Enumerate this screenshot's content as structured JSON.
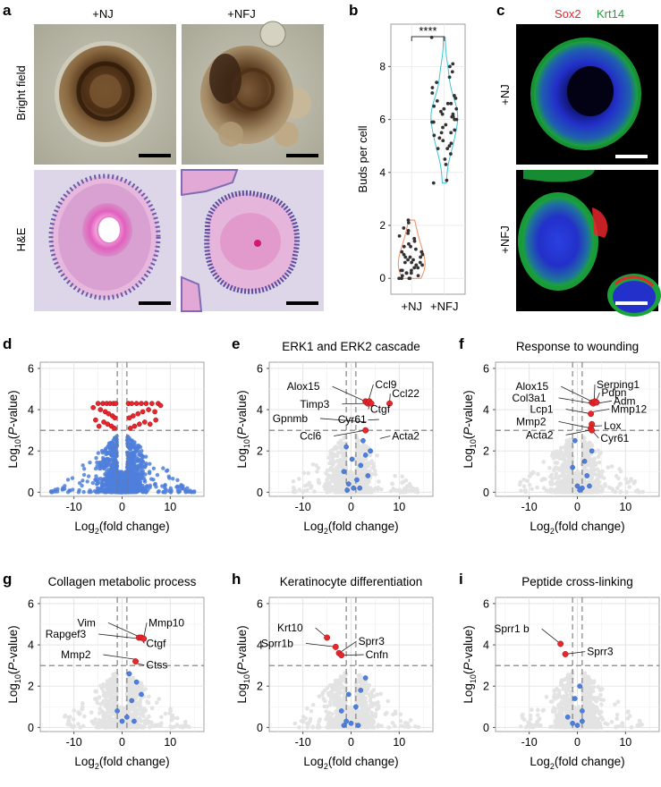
{
  "panels": {
    "a": {
      "letter": "a",
      "col_labels": [
        "+NJ",
        "+NFJ"
      ],
      "row_labels": [
        "Bright field",
        "H&E"
      ],
      "images": [
        "organoid-brightfield-NJ",
        "organoid-brightfield-NFJ",
        "organoid-HE-NJ",
        "organoid-HE-NFJ"
      ],
      "colors": {
        "brightfield_bg": "#b9b7a6",
        "he_bg": "#dcd6e8",
        "he_tissue": "#d78fc8",
        "he_nuclei": "#5a4d9e"
      }
    },
    "b": {
      "letter": "b",
      "significance": "****"
    },
    "c": {
      "letter": "c",
      "marker_red": "Sox2",
      "marker_green": "Krt14",
      "row_labels": [
        "+NJ",
        "+NFJ"
      ],
      "colors": {
        "red": "#e8262d",
        "green": "#1aa33a",
        "blue": "#2330c9"
      }
    },
    "d": {
      "letter": "d"
    },
    "e": {
      "letter": "e"
    },
    "f": {
      "letter": "f"
    },
    "g": {
      "letter": "g"
    },
    "h": {
      "letter": "h"
    },
    "i": {
      "letter": "i"
    }
  },
  "volcano_common": {
    "ylabel_main": "Log",
    "ylabel_sub": "10",
    "ylabel_rest": "(P-value)",
    "xlabel_main": "Log",
    "xlabel_sub": "2",
    "xlabel_rest": "(fold change)"
  },
  "chart_data": [
    {
      "id": "b",
      "type": "scatter",
      "title": "",
      "ylabel": "Buds per cell",
      "categories": [
        "+NJ",
        "+NFJ"
      ],
      "ylim": [
        -0.6,
        9.6
      ],
      "yticks": [
        0,
        2,
        4,
        6,
        8
      ],
      "colors": {
        "NJ_violin": "#f08a5d",
        "NFJ_violin": "#3cc3d6",
        "points": "#333333"
      },
      "series": [
        {
          "name": "+NJ",
          "values": [
            0.0,
            0.1,
            0.2,
            0.3,
            0.5,
            0.6,
            0.7,
            0.8,
            1.0,
            1.1,
            1.2,
            1.3,
            1.5,
            1.7,
            1.9,
            2.1,
            0.0,
            0.4,
            0.9,
            0.2,
            0.6,
            1.4,
            0.1,
            0.8,
            0.3,
            1.0,
            0.5,
            0.0,
            0.7,
            1.6,
            0.2,
            0.9,
            1.2,
            0.4,
            0.0,
            0.6,
            2.2,
            1.8,
            0.3,
            0.8
          ]
        },
        {
          "name": "+NFJ",
          "values": [
            9.1,
            8.1,
            8.0,
            7.6,
            7.4,
            7.2,
            7.0,
            6.9,
            6.8,
            6.6,
            6.5,
            6.4,
            6.3,
            6.2,
            6.2,
            6.1,
            6.0,
            6.0,
            5.9,
            5.8,
            5.7,
            5.6,
            5.5,
            5.4,
            5.3,
            5.2,
            5.1,
            5.0,
            4.9,
            4.7,
            4.5,
            4.3,
            3.7,
            3.6,
            6.7,
            5.9,
            6.4,
            7.8,
            6.1,
            5.5,
            4.9,
            6.6
          ]
        }
      ]
    },
    {
      "id": "d",
      "type": "scatter",
      "title": "",
      "xlim": [
        -17,
        17
      ],
      "ylim": [
        -0.2,
        6.3
      ],
      "xticks": [
        -10,
        0,
        10
      ],
      "yticks": [
        0,
        2,
        4,
        6
      ],
      "threshold_y": 3.0,
      "threshold_x": [
        -1,
        1
      ],
      "background_cloud": "blue",
      "cloud_xrange": [
        -15,
        15
      ],
      "sig_points": [
        [
          -5.0,
          4.3
        ],
        [
          -4.0,
          4.3
        ],
        [
          -3.2,
          4.3
        ],
        [
          -2.5,
          4.3
        ],
        [
          -1.8,
          4.3
        ],
        [
          -1.3,
          4.3
        ],
        [
          1.3,
          4.3
        ],
        [
          2.0,
          4.3
        ],
        [
          3.0,
          4.3
        ],
        [
          4.0,
          4.3
        ],
        [
          5.0,
          4.3
        ],
        [
          6.2,
          4.3
        ],
        [
          7.5,
          4.3
        ],
        [
          -4.5,
          4.0
        ],
        [
          -3.5,
          3.9
        ],
        [
          -2.8,
          3.8
        ],
        [
          -2.0,
          3.7
        ],
        [
          -1.5,
          3.6
        ],
        [
          1.5,
          3.6
        ],
        [
          2.3,
          3.7
        ],
        [
          3.3,
          3.8
        ],
        [
          4.3,
          3.9
        ],
        [
          5.5,
          4.0
        ],
        [
          6.8,
          3.9
        ],
        [
          -3.8,
          3.4
        ],
        [
          -3.0,
          3.3
        ],
        [
          -2.2,
          3.2
        ],
        [
          -1.6,
          3.1
        ],
        [
          1.7,
          3.1
        ],
        [
          2.6,
          3.2
        ],
        [
          3.6,
          3.3
        ],
        [
          4.7,
          3.4
        ],
        [
          5.8,
          3.3
        ],
        [
          7.0,
          3.5
        ],
        [
          -5.5,
          3.5
        ],
        [
          -4.8,
          3.2
        ],
        [
          8.0,
          4.2
        ],
        [
          -6.0,
          4.1
        ]
      ],
      "labels": []
    },
    {
      "id": "e",
      "type": "scatter",
      "title": "ERK1 and ERK2 cascade",
      "xlim": [
        -17,
        17
      ],
      "ylim": [
        -0.2,
        6.3
      ],
      "xticks": [
        -10,
        0,
        10
      ],
      "yticks": [
        0,
        2,
        4,
        6
      ],
      "threshold_y": 3.0,
      "threshold_x": [
        -1,
        1
      ],
      "background_cloud": "gray",
      "cloud_xrange": [
        -12,
        14
      ],
      "blue_points": [
        [
          -1.5,
          1.0
        ],
        [
          -0.5,
          0.4
        ],
        [
          0.5,
          0.2
        ],
        [
          1.2,
          0.6
        ],
        [
          2.0,
          1.3
        ],
        [
          3.0,
          1.8
        ],
        [
          3.5,
          0.8
        ],
        [
          -1.0,
          2.2
        ],
        [
          2.5,
          2.5
        ],
        [
          0.2,
          1.6
        ],
        [
          1.8,
          0.2
        ],
        [
          -0.8,
          0.1
        ],
        [
          4.0,
          2.0
        ]
      ],
      "sig_points": [
        [
          3.0,
          4.4
        ],
        [
          3.2,
          4.35
        ],
        [
          3.5,
          4.3
        ],
        [
          3.8,
          4.4
        ],
        [
          4.2,
          4.3
        ],
        [
          8.0,
          4.3
        ],
        [
          3.0,
          3.0
        ]
      ],
      "labels": [
        {
          "text": "Alox15",
          "x": -6.5,
          "y": 4.95,
          "to": [
            3.0,
            4.4
          ]
        },
        {
          "text": "Ccl9",
          "x": 5.0,
          "y": 5.05,
          "to": [
            3.5,
            4.35
          ]
        },
        {
          "text": "Ccl22",
          "x": 8.5,
          "y": 4.6,
          "to": [
            8.0,
            4.3
          ]
        },
        {
          "text": "Timp3",
          "x": -4.5,
          "y": 4.1,
          "to": [
            3.0,
            4.3
          ]
        },
        {
          "text": "Ctgf",
          "x": 4.0,
          "y": 3.85,
          "to": [
            3.8,
            4.4
          ]
        },
        {
          "text": "Gpnmb",
          "x": -9.0,
          "y": 3.4,
          "to": [
            3.2,
            3.4
          ]
        },
        {
          "text": "Cyr61",
          "x": 3.2,
          "y": 3.35,
          "to": [
            3.5,
            3.5
          ]
        },
        {
          "text": "Ccl6",
          "x": -6.2,
          "y": 2.55,
          "to": [
            3.0,
            3.0
          ]
        },
        {
          "text": "Acta2",
          "x": 8.5,
          "y": 2.55,
          "to": [
            6.0,
            2.6
          ]
        }
      ]
    },
    {
      "id": "f",
      "type": "scatter",
      "title": "Response to wounding",
      "xlim": [
        -17,
        17
      ],
      "ylim": [
        -0.2,
        6.3
      ],
      "xticks": [
        -10,
        0,
        10
      ],
      "yticks": [
        0,
        2,
        4,
        6
      ],
      "threshold_y": 3.0,
      "threshold_x": [
        -1,
        1
      ],
      "background_cloud": "gray",
      "cloud_xrange": [
        -12,
        14
      ],
      "blue_points": [
        [
          -1.0,
          1.2
        ],
        [
          0.0,
          0.3
        ],
        [
          1.0,
          0.2
        ],
        [
          2.0,
          0.8
        ],
        [
          3.0,
          2.0
        ],
        [
          -0.5,
          2.5
        ],
        [
          1.5,
          1.5
        ],
        [
          0.5,
          0.1
        ],
        [
          2.5,
          0.3
        ]
      ],
      "sig_points": [
        [
          3.0,
          4.35
        ],
        [
          3.3,
          4.3
        ],
        [
          3.6,
          4.4
        ],
        [
          4.0,
          4.35
        ],
        [
          2.8,
          3.8
        ],
        [
          3.0,
          3.3
        ],
        [
          2.8,
          3.1
        ],
        [
          3.0,
          3.0
        ]
      ],
      "labels": [
        {
          "text": "Alox15",
          "x": -6.0,
          "y": 4.95,
          "to": [
            3.0,
            4.4
          ]
        },
        {
          "text": "Serping1",
          "x": 4.0,
          "y": 5.05,
          "to": [
            3.5,
            4.4
          ]
        },
        {
          "text": "Pdpn",
          "x": 5.0,
          "y": 4.65,
          "to": [
            3.8,
            4.35
          ]
        },
        {
          "text": "Col3a1",
          "x": -6.5,
          "y": 4.4,
          "to": [
            3.0,
            4.3
          ]
        },
        {
          "text": "Adm",
          "x": 7.5,
          "y": 4.25,
          "to": [
            4.0,
            4.3
          ]
        },
        {
          "text": "Lcp1",
          "x": -5.0,
          "y": 3.85,
          "to": [
            2.8,
            3.8
          ]
        },
        {
          "text": "Mmp12",
          "x": 7.0,
          "y": 3.85,
          "to": [
            3.3,
            3.9
          ]
        },
        {
          "text": "Mmp2",
          "x": -6.5,
          "y": 3.25,
          "to": [
            2.8,
            3.1
          ]
        },
        {
          "text": "Lox",
          "x": 5.5,
          "y": 3.05,
          "to": [
            3.0,
            3.2
          ]
        },
        {
          "text": "Acta2",
          "x": -5.0,
          "y": 2.6,
          "to": [
            2.5,
            3.0
          ]
        },
        {
          "text": "Cyr61",
          "x": 4.8,
          "y": 2.45,
          "to": [
            3.0,
            3.0
          ]
        }
      ]
    },
    {
      "id": "g",
      "type": "scatter",
      "title": "Collagen metabolic process",
      "xlim": [
        -17,
        17
      ],
      "ylim": [
        -0.2,
        6.3
      ],
      "xticks": [
        -10,
        0,
        10
      ],
      "yticks": [
        0,
        2,
        4,
        6
      ],
      "threshold_y": 3.0,
      "threshold_x": [
        -1,
        1
      ],
      "background_cloud": "gray",
      "cloud_xrange": [
        -12,
        14
      ],
      "blue_points": [
        [
          -1.0,
          0.8
        ],
        [
          0.0,
          0.3
        ],
        [
          1.0,
          0.5
        ],
        [
          2.0,
          1.3
        ],
        [
          3.0,
          2.2
        ],
        [
          4.0,
          1.6
        ],
        [
          2.5,
          0.3
        ],
        [
          1.5,
          2.6
        ]
      ],
      "sig_points": [
        [
          3.5,
          4.35
        ],
        [
          4.0,
          4.35
        ],
        [
          4.5,
          4.3
        ],
        [
          2.8,
          3.2
        ]
      ],
      "labels": [
        {
          "text": "Vim",
          "x": -5.5,
          "y": 4.9,
          "to": [
            3.5,
            4.4
          ]
        },
        {
          "text": "Mmp10",
          "x": 5.5,
          "y": 4.9,
          "to": [
            4.5,
            4.35
          ]
        },
        {
          "text": "Rapgef3",
          "x": -7.5,
          "y": 4.35,
          "to": [
            3.5,
            4.3
          ]
        },
        {
          "text": "Ctgf",
          "x": 5.0,
          "y": 3.9,
          "to": [
            4.0,
            4.3
          ]
        },
        {
          "text": "Mmp2",
          "x": -6.5,
          "y": 3.35,
          "to": [
            2.8,
            3.3
          ]
        },
        {
          "text": "Ctss",
          "x": 5.0,
          "y": 2.85,
          "to": [
            3.0,
            3.1
          ]
        }
      ]
    },
    {
      "id": "h",
      "type": "scatter",
      "title": "Keratinocyte differentiation",
      "xlim": [
        -17,
        17
      ],
      "ylim": [
        -0.2,
        6.3
      ],
      "xticks": [
        -10,
        0,
        10
      ],
      "yticks": [
        0,
        2,
        4,
        6
      ],
      "threshold_y": 3.0,
      "threshold_x": [
        -1,
        1
      ],
      "background_cloud": "gray",
      "cloud_xrange": [
        -12,
        14
      ],
      "blue_points": [
        [
          -2.0,
          0.8
        ],
        [
          -1.0,
          0.3
        ],
        [
          0.0,
          0.2
        ],
        [
          1.0,
          1.0
        ],
        [
          2.0,
          1.8
        ],
        [
          3.0,
          2.4
        ],
        [
          -0.5,
          1.6
        ],
        [
          1.5,
          0.1
        ],
        [
          -1.5,
          0.1
        ]
      ],
      "sig_points": [
        [
          -5.0,
          4.35
        ],
        [
          -3.2,
          3.9
        ],
        [
          -2.5,
          3.6
        ],
        [
          -2.0,
          3.5
        ]
      ],
      "labels": [
        {
          "text": "Krt10",
          "x": -10.0,
          "y": 4.65,
          "to": [
            -5.0,
            4.35
          ]
        },
        {
          "text": "Sprr1b",
          "x": -12.0,
          "y": 3.9,
          "to": [
            -3.2,
            3.9
          ]
        },
        {
          "text": "Sprr3",
          "x": 1.5,
          "y": 4.0,
          "to": [
            -2.5,
            3.6
          ]
        },
        {
          "text": "Cnfn",
          "x": 3.0,
          "y": 3.35,
          "to": [
            -2.0,
            3.5
          ]
        }
      ]
    },
    {
      "id": "i",
      "type": "scatter",
      "title": "Peptide cross-linking",
      "xlim": [
        -17,
        17
      ],
      "ylim": [
        -0.2,
        6.3
      ],
      "xticks": [
        -10,
        0,
        10
      ],
      "yticks": [
        0,
        2,
        4,
        6
      ],
      "threshold_y": 3.0,
      "threshold_x": [
        -1,
        1
      ],
      "background_cloud": "gray",
      "cloud_xrange": [
        -12,
        14
      ],
      "blue_points": [
        [
          -2.0,
          0.5
        ],
        [
          -1.0,
          0.2
        ],
        [
          0.0,
          0.1
        ],
        [
          1.0,
          0.8
        ],
        [
          0.5,
          2.0
        ],
        [
          -0.5,
          1.4
        ],
        [
          1.0,
          0.3
        ]
      ],
      "sig_points": [
        [
          -3.5,
          4.05
        ],
        [
          -2.5,
          3.55
        ]
      ],
      "labels": [
        {
          "text": "Sprr1 b",
          "x": -10.0,
          "y": 4.6,
          "to": [
            -3.5,
            4.05
          ]
        },
        {
          "text": "Sprr3",
          "x": 2.0,
          "y": 3.5,
          "to": [
            -2.5,
            3.55
          ]
        }
      ]
    }
  ]
}
